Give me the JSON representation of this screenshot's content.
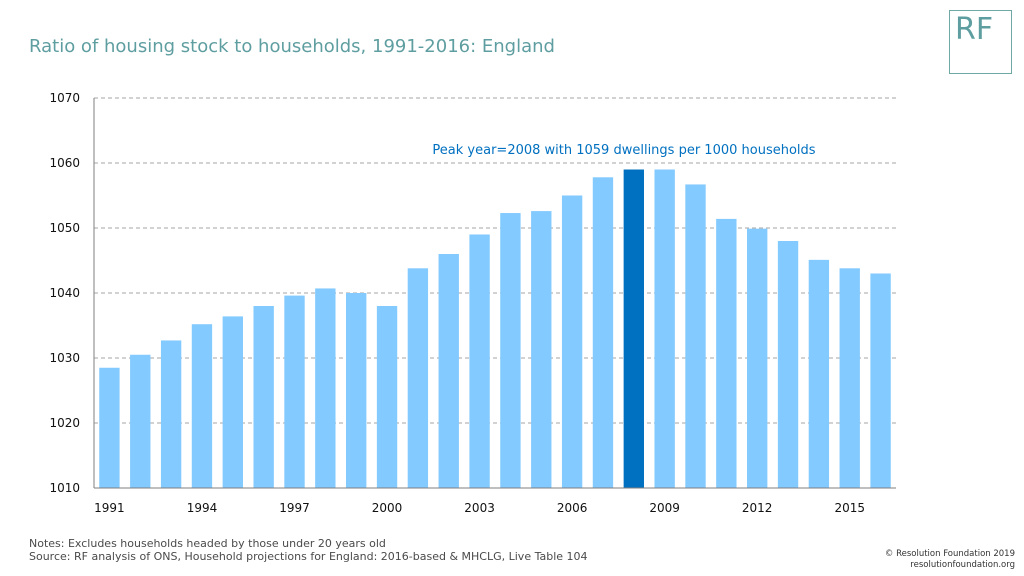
{
  "page": {
    "title": "Ratio of housing stock to households, 1991-2016: England",
    "logo_text": "RF",
    "notes": "Notes: Excludes households headed by those under 20 years old",
    "source": "Source: RF analysis of ONS, Household projections for England: 2016-based & MHCLG, Live Table 104",
    "copyright": "© Resolution Foundation 2019",
    "website": "resolutionfoundation.org"
  },
  "chart_data": {
    "type": "bar",
    "categories": [
      "1991",
      "1992",
      "1993",
      "1994",
      "1995",
      "1996",
      "1997",
      "1998",
      "1999",
      "2000",
      "2001",
      "2002",
      "2003",
      "2004",
      "2005",
      "2006",
      "2007",
      "2008",
      "2009",
      "2010",
      "2011",
      "2012",
      "2013",
      "2014",
      "2015",
      "2016"
    ],
    "x_tick_labels": [
      "1991",
      "1994",
      "1997",
      "2000",
      "2003",
      "2006",
      "2009",
      "2012",
      "2015"
    ],
    "values": [
      1028.5,
      1030.5,
      1032.7,
      1035.2,
      1036.4,
      1038.0,
      1039.6,
      1040.7,
      1040.0,
      1038.0,
      1043.8,
      1046.0,
      1049.0,
      1052.3,
      1052.6,
      1055.0,
      1057.8,
      1059.0,
      1059.0,
      1056.7,
      1051.4,
      1049.9,
      1048.0,
      1045.1,
      1043.8,
      1043.0
    ],
    "ylim": [
      1010,
      1070
    ],
    "y_ticks": [
      1010,
      1020,
      1030,
      1040,
      1050,
      1060,
      1070
    ],
    "highlight_category": "2008",
    "annotation": "Peak year=2008 with 1059 dwellings per 1000 households",
    "grid": true,
    "colors": {
      "bar": "#82caff",
      "highlight": "#0070c0",
      "annotation": "#0070c0",
      "grid": "#a6a6a6"
    }
  }
}
